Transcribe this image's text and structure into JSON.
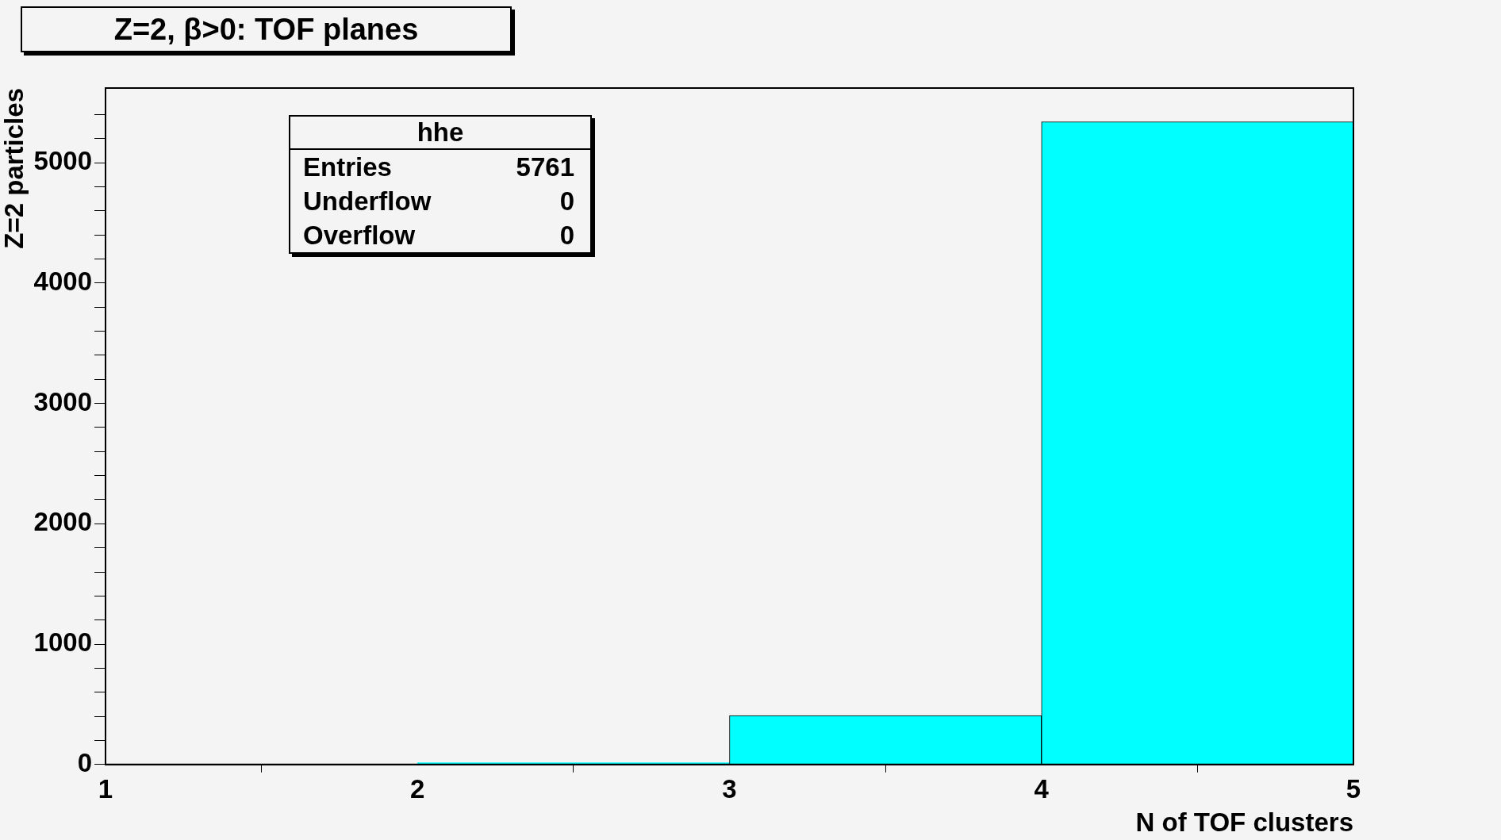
{
  "chart_data": {
    "type": "histogram",
    "title": "Z=2, β>0: TOF planes",
    "xlabel": "N of TOF clusters",
    "ylabel": "Z=2 particles",
    "bins": [
      1,
      2,
      3,
      4,
      5
    ],
    "values": [
      0,
      15,
      406,
      5340
    ],
    "color": "#00ffff",
    "xlim": [
      1,
      5
    ],
    "xticks": [
      1,
      2,
      3,
      4,
      5
    ],
    "ylim": [
      0,
      5620
    ],
    "yticks": [
      0,
      {
        "value": 200,
        "label": null
      },
      {
        "value": 400,
        "label": null
      },
      {
        "value": 600,
        "label": null
      },
      {
        "value": 800,
        "label": null
      },
      1000,
      {
        "value": 1200,
        "label": null
      },
      {
        "value": 1400,
        "label": null
      },
      {
        "value": 1600,
        "label": null
      },
      {
        "value": 1800,
        "label": null
      },
      2000,
      {
        "value": 2200,
        "label": null
      },
      {
        "value": 2400,
        "label": null
      },
      {
        "value": 2600,
        "label": null
      },
      {
        "value": 2800,
        "label": null
      },
      3000,
      {
        "value": 3200,
        "label": null
      },
      {
        "value": 3400,
        "label": null
      },
      {
        "value": 3600,
        "label": null
      },
      {
        "value": 3800,
        "label": null
      },
      4000,
      {
        "value": 4200,
        "label": null
      },
      {
        "value": 4400,
        "label": null
      },
      {
        "value": 4600,
        "label": null
      },
      {
        "value": 4800,
        "label": null
      },
      5000,
      {
        "value": 5200,
        "label": null
      },
      {
        "value": 5400,
        "label": null
      }
    ],
    "annotations": [
      "hhe",
      "Entries",
      "5761",
      "Underflow",
      "0",
      "Overflow",
      "0"
    ],
    "grid": false,
    "legend": false
  }
}
